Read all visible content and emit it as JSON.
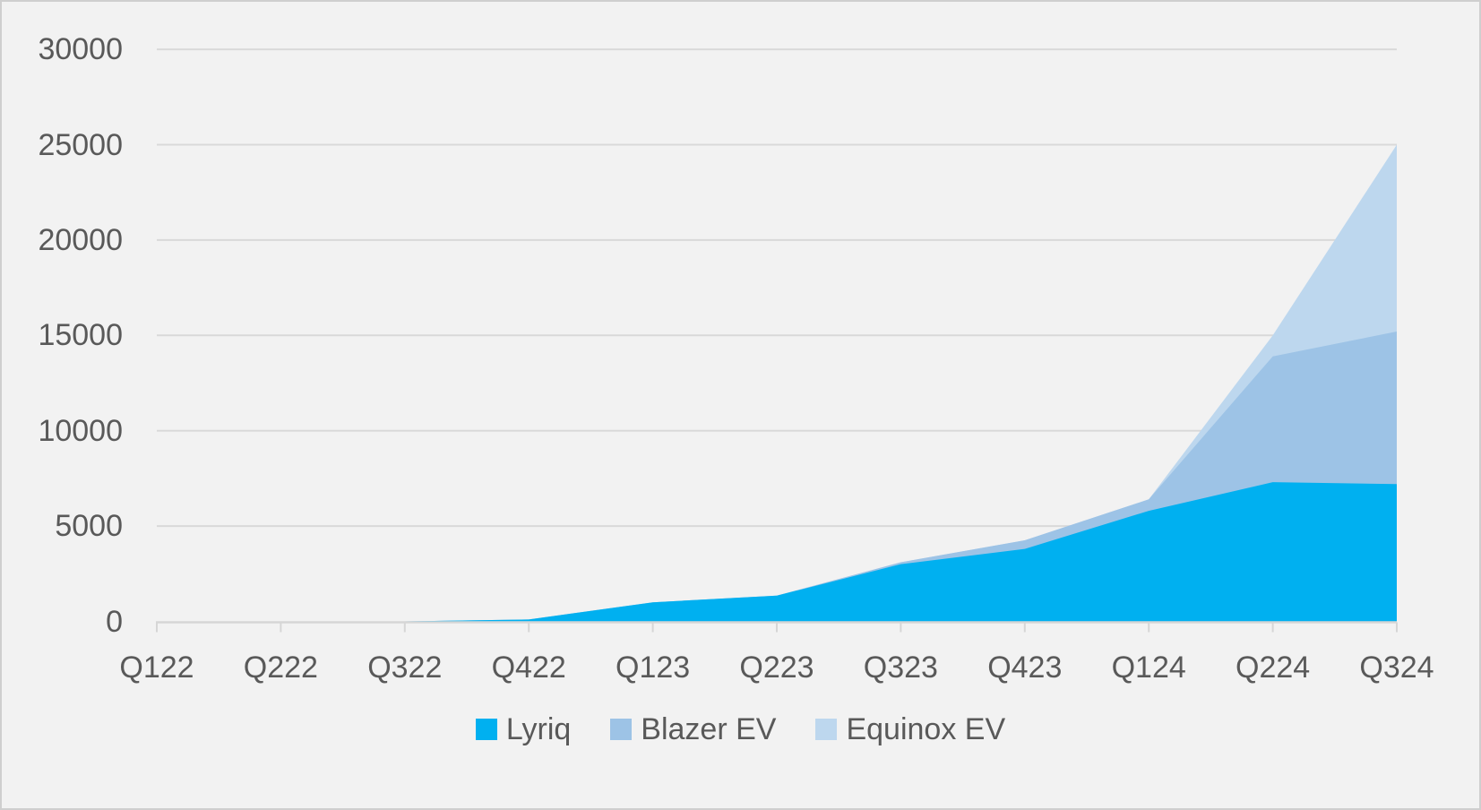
{
  "chart_data": {
    "type": "area",
    "stacked": true,
    "categories": [
      "Q122",
      "Q222",
      "Q322",
      "Q422",
      "Q123",
      "Q223",
      "Q323",
      "Q423",
      "Q124",
      "Q224",
      "Q324"
    ],
    "series": [
      {
        "name": "Lyriq",
        "color": "#00B0F0",
        "values": [
          0,
          0,
          0,
          100,
          1000,
          1350,
          3000,
          3800,
          5800,
          7300,
          7200
        ]
      },
      {
        "name": "Blazer EV",
        "color": "#9DC3E6",
        "values": [
          0,
          0,
          0,
          0,
          0,
          0,
          100,
          450,
          600,
          6600,
          8000
        ]
      },
      {
        "name": "Equinox EV",
        "color": "#BDD7EE",
        "values": [
          0,
          0,
          0,
          0,
          0,
          0,
          0,
          0,
          0,
          1100,
          9800
        ]
      }
    ],
    "y_axis": {
      "min": 0,
      "max": 30000,
      "tick_interval": 5000,
      "tick_labels": [
        "0",
        "5000",
        "10000",
        "15000",
        "20000",
        "25000",
        "30000"
      ]
    },
    "grid": true,
    "legend_position": "bottom",
    "colors": {
      "background": "#f2f2f2",
      "gridline": "#d9d9d9",
      "axis": "#d6d6d6",
      "axis_text": "#595959"
    }
  }
}
